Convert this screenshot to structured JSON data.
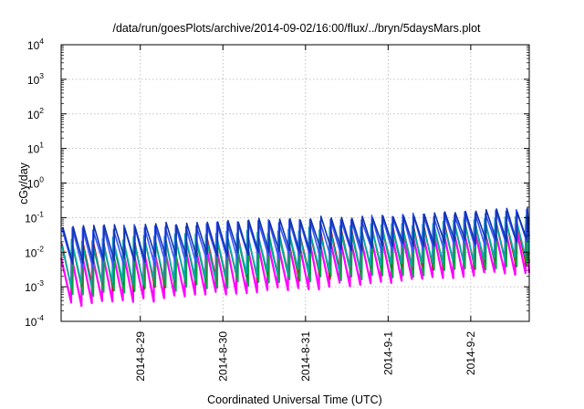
{
  "chart_data": {
    "type": "line",
    "title": "/data/run/goesPlots/archive/2014-09-02/16:00/flux/../bryn/5daysMars.plot",
    "xlabel": "Coordinated Universal Time (UTC)",
    "ylabel": "cGy/day",
    "yscale": "log",
    "ylim": [
      0.0001,
      10000
    ],
    "y_ticks": [
      {
        "base": "10",
        "exp": "-4",
        "value": 0.0001
      },
      {
        "base": "10",
        "exp": "-3",
        "value": 0.001
      },
      {
        "base": "10",
        "exp": "-2",
        "value": 0.01
      },
      {
        "base": "10",
        "exp": "-1",
        "value": 0.1
      },
      {
        "base": "10",
        "exp": "0",
        "value": 1
      },
      {
        "base": "10",
        "exp": "1",
        "value": 10
      },
      {
        "base": "10",
        "exp": "2",
        "value": 100
      },
      {
        "base": "10",
        "exp": "3",
        "value": 1000
      },
      {
        "base": "10",
        "exp": "4",
        "value": 10000
      }
    ],
    "xlim": [
      "2014-08-28 01:00",
      "2014-09-02 17:00"
    ],
    "x_ticks": [
      {
        "label": "2014-8-29",
        "value": "2014-08-29 00:00"
      },
      {
        "label": "2014-8-30",
        "value": "2014-08-30 00:00"
      },
      {
        "label": "2014-8-31",
        "value": "2014-08-31 00:00"
      },
      {
        "label": "2014-9-1",
        "value": "2014-09-01 00:00"
      },
      {
        "label": "2014-9-2",
        "value": "2014-09-02 00:00"
      }
    ],
    "grid": true,
    "legend": "none",
    "sawtooth_period_hours": 3,
    "series": [
      {
        "color": "#ff00ff",
        "peak_start": 0.008,
        "peak_end": 0.06,
        "trough_start": 0.0003,
        "trough_end": 0.003
      },
      {
        "color": "#cc0000",
        "peak_start": 0.018,
        "peak_end": 0.09,
        "trough_start": 0.0007,
        "trough_end": 0.005
      },
      {
        "color": "#00aa44",
        "peak_start": 0.012,
        "peak_end": 0.07,
        "trough_start": 0.0006,
        "trough_end": 0.004
      },
      {
        "color": "#00aaaa",
        "peak_start": 0.02,
        "peak_end": 0.1,
        "trough_start": 0.001,
        "trough_end": 0.008
      },
      {
        "color": "#3355ff",
        "peak_start": 0.045,
        "peak_end": 0.16,
        "trough_start": 0.004,
        "trough_end": 0.02
      },
      {
        "color": "#1133aa",
        "peak_start": 0.05,
        "peak_end": 0.17,
        "trough_start": 0.005,
        "trough_end": 0.025
      }
    ]
  }
}
